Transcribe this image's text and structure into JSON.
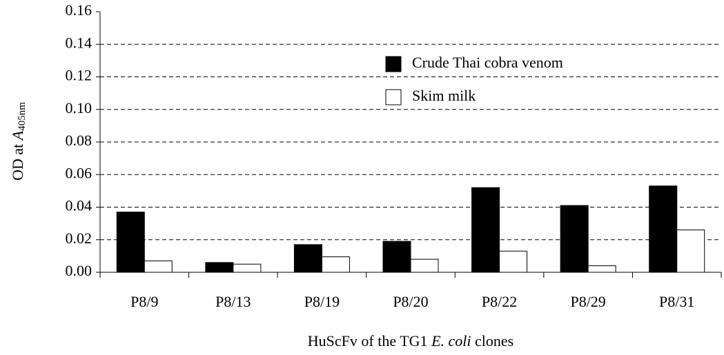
{
  "chart_data": {
    "type": "bar",
    "y_label_parts": [
      "OD at ",
      "A",
      "405nm"
    ],
    "x_label_parts": [
      "HuScFv of the TG1 ",
      "E. coli",
      " clones"
    ],
    "categories": [
      "P8/9",
      "P8/13",
      "P8/19",
      "P8/20",
      "P8/22",
      "P8/29",
      "P8/31"
    ],
    "series": [
      {
        "name": "Crude Thai cobra venom",
        "color": "#000000",
        "values": [
          0.037,
          0.006,
          0.017,
          0.019,
          0.052,
          0.041,
          0.053
        ]
      },
      {
        "name": "Skim milk",
        "color": "#ffffff",
        "values": [
          0.007,
          0.005,
          0.0095,
          0.008,
          0.013,
          0.004,
          0.026
        ]
      }
    ],
    "ylim": [
      0,
      0.16
    ],
    "yticks": [
      {
        "value": 0,
        "label": "0.00"
      },
      {
        "value": 0.02,
        "label": "0.02"
      },
      {
        "value": 0.04,
        "label": "0.04"
      },
      {
        "value": 0.06,
        "label": "0.06"
      },
      {
        "value": 0.08,
        "label": "0.08"
      },
      {
        "value": 0.1,
        "label": "0.10"
      },
      {
        "value": 0.12,
        "label": "0.12"
      },
      {
        "value": 0.14,
        "label": "0.14"
      },
      {
        "value": 0.16,
        "label": "0.16"
      }
    ],
    "grid": true,
    "legend": "upper center"
  }
}
